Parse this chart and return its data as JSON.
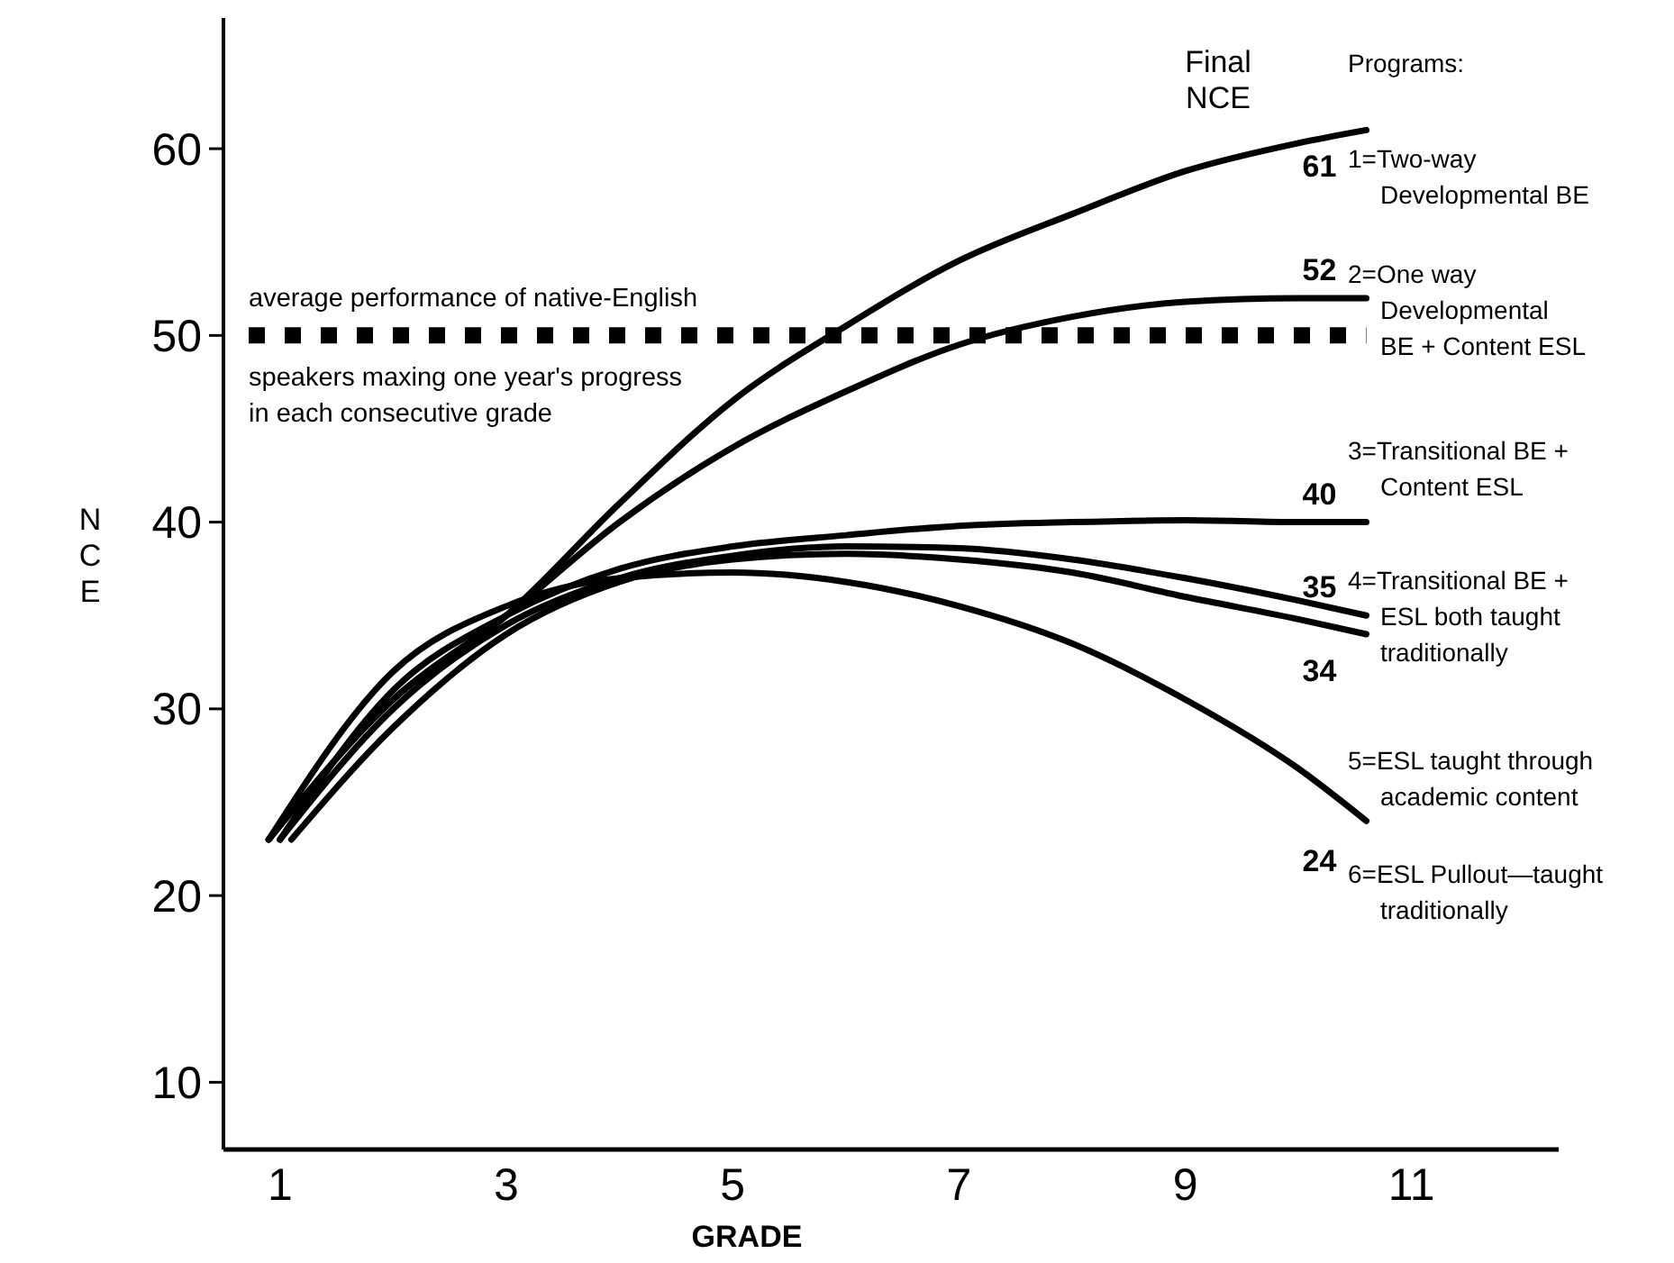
{
  "chart_data": {
    "type": "line",
    "xlabel": "GRADE",
    "ylabel": "NCE",
    "xlim": [
      0.5,
      12.3
    ],
    "xticks": [
      1,
      3,
      5,
      7,
      9,
      11
    ],
    "ylim": [
      6.4,
      67
    ],
    "yticks": [
      10,
      20,
      30,
      40,
      50,
      60
    ],
    "series": [
      {
        "color": "#000000",
        "x": [
          0.9,
          2,
          3,
          4,
          5,
          6,
          7,
          8,
          9,
          10,
          10.6
        ],
        "values": [
          23,
          30.5,
          35,
          41,
          46.5,
          50.5,
          54,
          56.5,
          58.8,
          60.3,
          61
        ],
        "value_labels": [
          null,
          null,
          null,
          null,
          null,
          null,
          null,
          null,
          null,
          null,
          "61"
        ]
      },
      {
        "color": "#000000",
        "x": [
          0.9,
          2,
          3,
          4,
          5,
          6,
          7,
          8,
          9,
          10,
          10.6
        ],
        "values": [
          23,
          30.5,
          35,
          40,
          44,
          47,
          49.5,
          51,
          51.8,
          52,
          52
        ],
        "value_labels": [
          null,
          null,
          null,
          null,
          null,
          null,
          null,
          null,
          null,
          null,
          "52"
        ]
      },
      {
        "color": "#000000",
        "x": [
          1,
          2,
          3,
          4,
          5,
          6,
          7,
          8,
          9,
          10,
          10.6
        ],
        "values": [
          23,
          31,
          35,
          37.5,
          38.7,
          39.3,
          39.8,
          40,
          40.1,
          40,
          40
        ],
        "value_labels": [
          null,
          null,
          null,
          null,
          null,
          null,
          null,
          null,
          null,
          null,
          "40"
        ]
      },
      {
        "color": "#000000",
        "x": [
          1,
          2,
          3,
          4,
          5,
          6,
          7,
          8,
          9,
          10,
          10.6
        ],
        "values": [
          23,
          30,
          34.5,
          37,
          38.2,
          38.7,
          38.6,
          38,
          37,
          35.8,
          35
        ],
        "value_labels": [
          null,
          null,
          null,
          null,
          null,
          null,
          null,
          null,
          null,
          null,
          "35"
        ]
      },
      {
        "color": "#000000",
        "x": [
          1.1,
          2,
          3,
          4,
          5,
          6,
          7,
          8,
          9,
          10,
          10.6
        ],
        "values": [
          23,
          29,
          34,
          36.8,
          38,
          38.3,
          38,
          37.3,
          36,
          34.8,
          34
        ],
        "value_labels": [
          null,
          null,
          null,
          null,
          null,
          null,
          null,
          null,
          null,
          null,
          "34"
        ]
      },
      {
        "color": "#000000",
        "x": [
          0.9,
          2,
          3,
          4,
          5,
          6,
          7,
          8,
          9,
          10,
          10.6
        ],
        "values": [
          23,
          32,
          35.5,
          37,
          37.3,
          36.8,
          35.5,
          33.5,
          30.5,
          26.8,
          24
        ],
        "value_labels": [
          null,
          null,
          null,
          null,
          null,
          null,
          null,
          null,
          null,
          null,
          "24"
        ]
      }
    ],
    "ref_lines": [
      {
        "axis": "y",
        "value": 50,
        "label": "average performance of native-English\nspeakers maxing one year's progress\nin each consecutive grade",
        "color": "#000000",
        "line_style": "dashed"
      }
    ],
    "annotations": [
      "Final\nNCE",
      "Programs:",
      "1=Two-way\n   Developmental BE",
      "2=One way\n   Developmental\n   BE + Content ESL",
      "3=Transitional BE +\n   Content ESL",
      "4=Transitional BE +\n   ESL both taught\n   traditionally",
      "5=ESL taught through\n   academic content",
      "6=ESL Pullout—taught\n   traditionally"
    ]
  }
}
